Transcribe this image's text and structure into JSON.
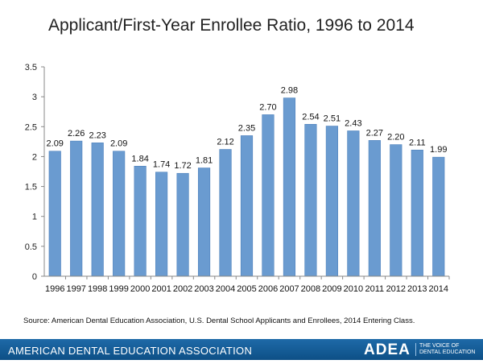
{
  "header": {
    "title": "Applicant/First-Year Enrollee Ratio, 1996 to 2014"
  },
  "chart_data": {
    "type": "bar",
    "title": "Applicant/First-Year Enrollee Ratio, 1996 to 2014",
    "xlabel": "",
    "ylabel": "",
    "categories": [
      "1996",
      "1997",
      "1998",
      "1999",
      "2000",
      "2001",
      "2002",
      "2003",
      "2004",
      "2005",
      "2006",
      "2007",
      "2008",
      "2009",
      "2010",
      "2011",
      "2012",
      "2013",
      "2014"
    ],
    "values": [
      2.09,
      2.26,
      2.23,
      2.09,
      1.84,
      1.74,
      1.72,
      1.81,
      2.12,
      2.35,
      2.7,
      2.98,
      2.54,
      2.51,
      2.43,
      2.27,
      2.2,
      2.11,
      1.99
    ],
    "data_labels": [
      "2.09",
      "2.26",
      "2.23",
      "2.09",
      "1.84",
      "1.74",
      "1.72",
      "1.81",
      "2.12",
      "2.35",
      "2.70",
      "2.98",
      "2.54",
      "2.51",
      "2.43",
      "2.27",
      "2.20",
      "2.11",
      "1.99"
    ],
    "ylim": [
      0,
      3.5
    ],
    "yticks": [
      0,
      0.5,
      1,
      1.5,
      2,
      2.5,
      3,
      3.5
    ],
    "ytick_labels": [
      "0",
      "0.5",
      "1",
      "1.5",
      "2",
      "2.5",
      "3",
      "3.5"
    ],
    "grid": false,
    "bar_color": "#6a9bd0",
    "bar_edge_color": "#4f82bd"
  },
  "source": "Source: American Dental Education Association, U.S. Dental School Applicants and Enrollees, 2014 Entering Class.",
  "footer": {
    "organization": "AMERICAN DENTAL EDUCATION ASSOCIATION",
    "logo": "ADEA",
    "tagline_line1": "THE VOICE OF",
    "tagline_line2": "DENTAL EDUCATION"
  }
}
